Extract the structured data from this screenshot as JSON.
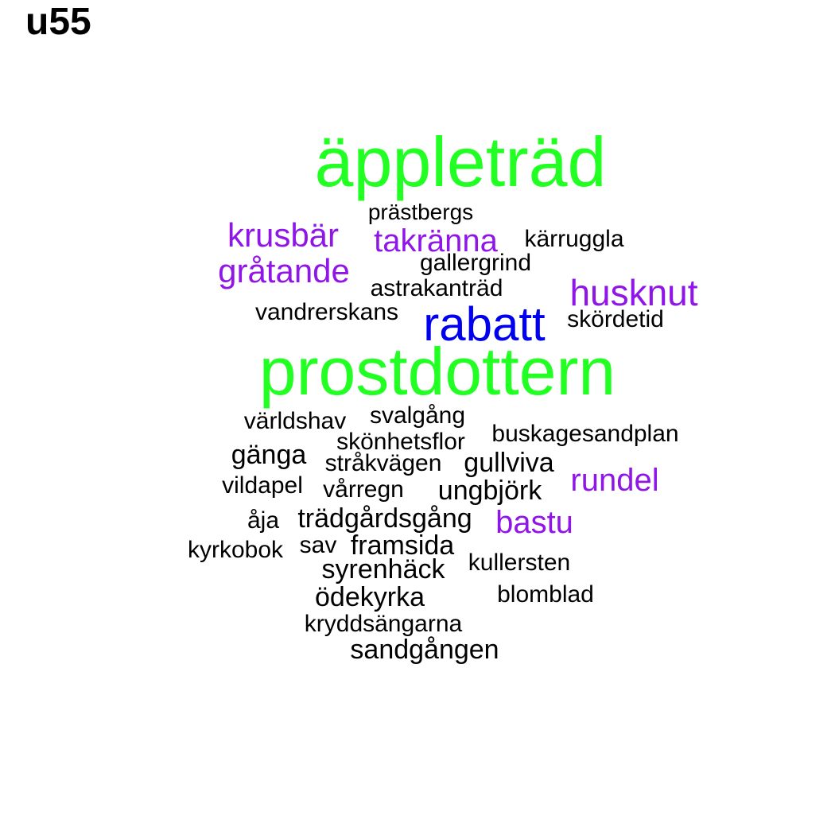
{
  "title": "u55",
  "colors": {
    "green": "#22ff22",
    "blue": "#0000ee",
    "purple": "#9016e8",
    "black": "#000000"
  },
  "words": [
    {
      "text": "äppleträd",
      "color": "green"
    },
    {
      "text": "prästbergs",
      "color": "black"
    },
    {
      "text": "krusbär",
      "color": "purple"
    },
    {
      "text": "takränna",
      "color": "purple"
    },
    {
      "text": "kärruggla",
      "color": "black"
    },
    {
      "text": "gråtande",
      "color": "purple"
    },
    {
      "text": "gallergrind",
      "color": "black"
    },
    {
      "text": "astrakanträd",
      "color": "black"
    },
    {
      "text": "husknut",
      "color": "purple"
    },
    {
      "text": "vandrerskans",
      "color": "black"
    },
    {
      "text": "rabatt",
      "color": "blue"
    },
    {
      "text": "skördetid",
      "color": "black"
    },
    {
      "text": "prostdottern",
      "color": "green"
    },
    {
      "text": "världshav",
      "color": "black"
    },
    {
      "text": "svalgång",
      "color": "black"
    },
    {
      "text": "skönhetsflor",
      "color": "black"
    },
    {
      "text": "buskagesandplan",
      "color": "black"
    },
    {
      "text": "gänga",
      "color": "black"
    },
    {
      "text": "stråkvägen",
      "color": "black"
    },
    {
      "text": "gullviva",
      "color": "black"
    },
    {
      "text": "vildapel",
      "color": "black"
    },
    {
      "text": "vårregn",
      "color": "black"
    },
    {
      "text": "ungbjörk",
      "color": "black"
    },
    {
      "text": "rundel",
      "color": "purple"
    },
    {
      "text": "åja",
      "color": "black"
    },
    {
      "text": "trädgårdsgång",
      "color": "black"
    },
    {
      "text": "bastu",
      "color": "purple"
    },
    {
      "text": "kyrkobok",
      "color": "black"
    },
    {
      "text": "sav",
      "color": "black"
    },
    {
      "text": "framsida",
      "color": "black"
    },
    {
      "text": "syrenhäck",
      "color": "black"
    },
    {
      "text": "kullersten",
      "color": "black"
    },
    {
      "text": "ödekyrka",
      "color": "black"
    },
    {
      "text": "blomblad",
      "color": "black"
    },
    {
      "text": "kryddsängarna",
      "color": "black"
    },
    {
      "text": "sandgången",
      "color": "black"
    }
  ]
}
